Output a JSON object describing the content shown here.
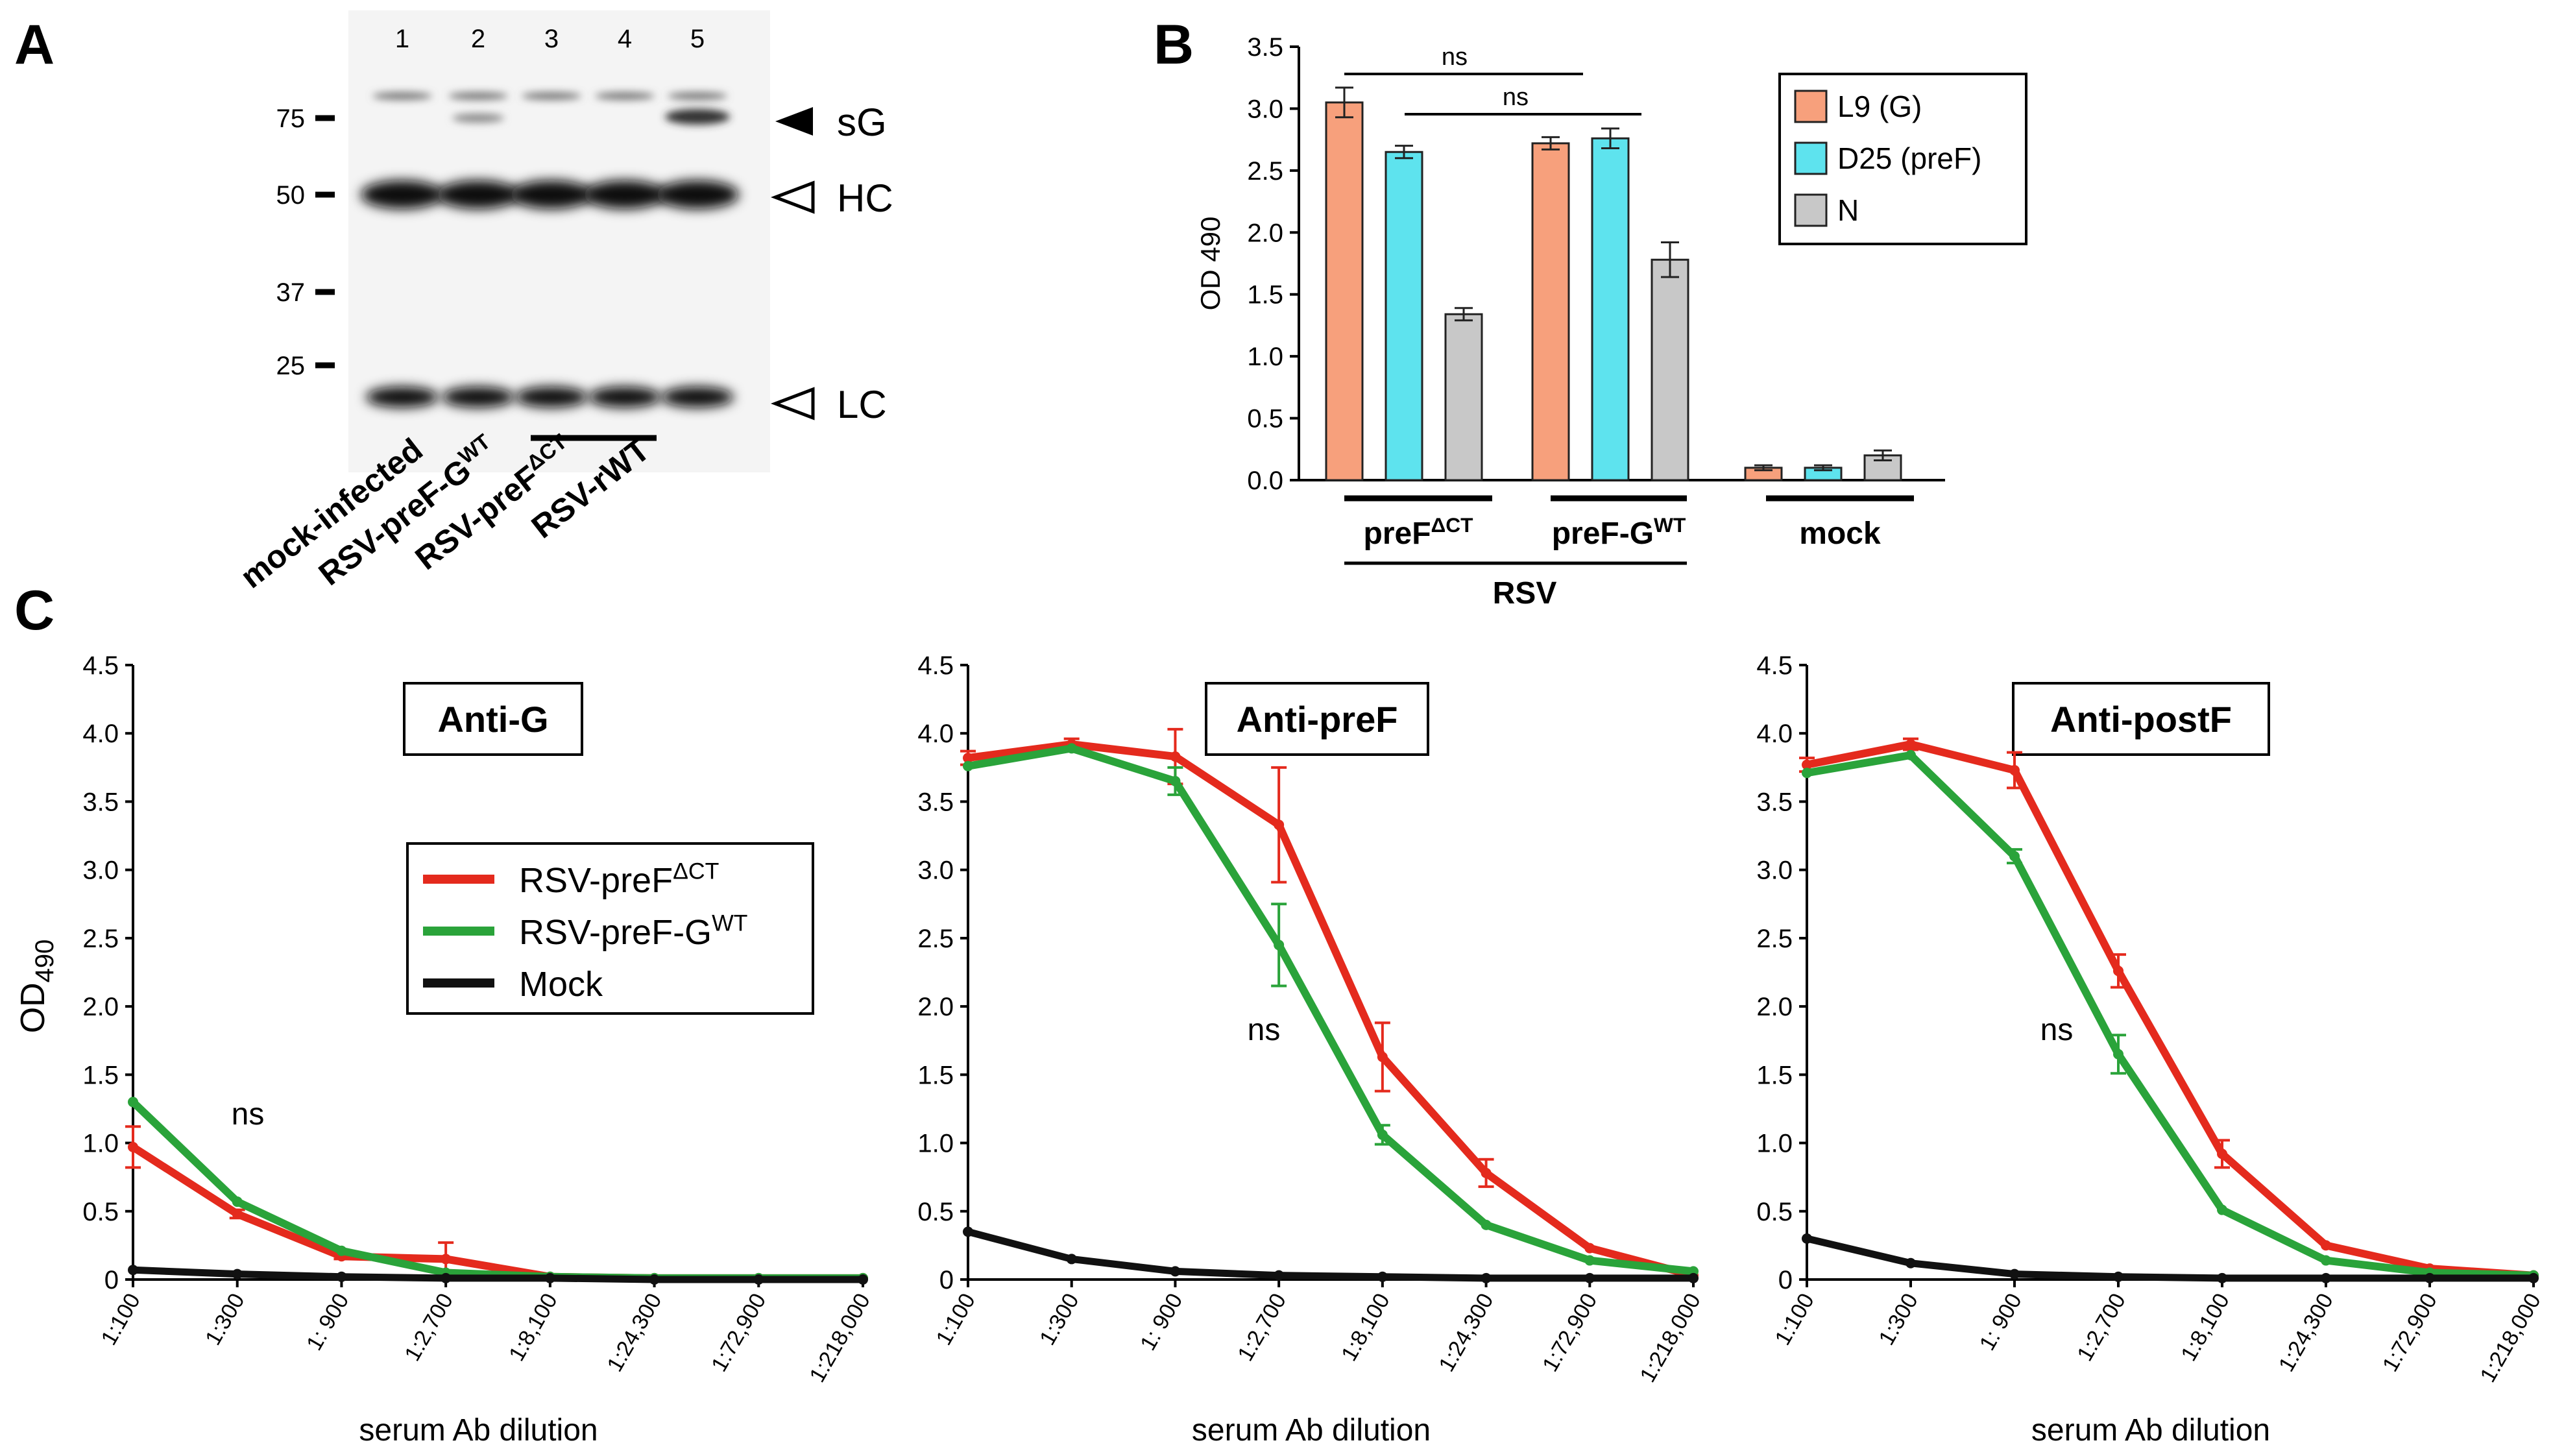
{
  "panels": {
    "a": "A",
    "b": "B",
    "c": "C"
  },
  "colors": {
    "red": "#e42a1d",
    "green": "#2aa33a",
    "black": "#111111",
    "salmon": "#f7a07c",
    "cyan": "#5ee3ee",
    "gray": "#c8c8c8"
  },
  "blot": {
    "lanes": [
      "1",
      "2",
      "3",
      "4",
      "5"
    ],
    "markers": [
      "75",
      "50",
      "37",
      "25"
    ],
    "band_labels": [
      "sG",
      "HC",
      "LC"
    ],
    "sample_labels": [
      "mock-infected",
      "RSV-preF-G",
      "RSV-preF",
      "RSV-rWT"
    ],
    "sample_sups": [
      "",
      "WT",
      "ΔCT",
      ""
    ]
  },
  "chart_data": [
    {
      "type": "bar",
      "panel": "B",
      "ylabel": "OD 490",
      "ylim": [
        0,
        3.5
      ],
      "yticks": [
        "0.0",
        "0.5",
        "1.0",
        "1.5",
        "2.0",
        "2.5",
        "3.0",
        "3.5"
      ],
      "groups": [
        "preFΔCT",
        "preF-GWT",
        "mock"
      ],
      "group_labels": [
        {
          "main": "preF",
          "sup": "ΔCT"
        },
        {
          "main": "preF-G",
          "sup": "WT"
        },
        {
          "main": "mock",
          "sup": ""
        }
      ],
      "supergroup_label": "RSV",
      "series": [
        {
          "name": "L9 (G)",
          "values": [
            3.05,
            2.72,
            0.1
          ],
          "errors": [
            0.12,
            0.05,
            0.02
          ]
        },
        {
          "name": "D25 (preF)",
          "values": [
            2.65,
            2.76,
            0.1
          ],
          "errors": [
            0.05,
            0.08,
            0.02
          ]
        },
        {
          "name": "N",
          "values": [
            1.34,
            1.78,
            0.2
          ],
          "errors": [
            0.05,
            0.14,
            0.04
          ]
        }
      ],
      "annotations": [
        "ns",
        "ns"
      ]
    },
    {
      "type": "line",
      "panel": "C",
      "title": "Anti-G",
      "ylabel": "OD",
      "ylabel_sub": "490",
      "xlabel": "serum Ab dilution",
      "ylim": [
        0,
        4.5
      ],
      "yticks": [
        "0",
        "0.5",
        "1.0",
        "1.5",
        "2.0",
        "2.5",
        "3.0",
        "3.5",
        "4.0",
        "4.5"
      ],
      "categories": [
        "1:100",
        "1:300",
        "1: 900",
        "1:2,700",
        "1:8,100",
        "1:24,300",
        "1:72,900",
        "1:218,000"
      ],
      "annotation": "ns",
      "legend": [
        {
          "main": "RSV-preF",
          "sup": "ΔCT"
        },
        {
          "main": "RSV-preF-G",
          "sup": "WT"
        },
        {
          "main": "Mock",
          "sup": ""
        }
      ],
      "series": [
        {
          "name": "RSV-preFΔCT",
          "values": [
            0.97,
            0.48,
            0.17,
            0.15,
            0.02,
            0.01,
            0.01,
            0.01
          ],
          "errors": [
            0.15,
            0.03,
            0.02,
            0.12,
            0.0,
            0.0,
            0.0,
            0.0
          ]
        },
        {
          "name": "RSV-preF-GWT",
          "values": [
            1.3,
            0.57,
            0.21,
            0.05,
            0.02,
            0.01,
            0.01,
            0.01
          ],
          "errors": [
            0.0,
            0.0,
            0.0,
            0.0,
            0.0,
            0.0,
            0.0,
            0.0
          ]
        },
        {
          "name": "Mock",
          "values": [
            0.07,
            0.04,
            0.02,
            0.01,
            0.01,
            0.0,
            0.0,
            0.0
          ],
          "errors": [
            0.0,
            0.0,
            0.0,
            0.0,
            0.0,
            0.0,
            0.0,
            0.0
          ]
        }
      ]
    },
    {
      "type": "line",
      "panel": "C",
      "title": "Anti-preF",
      "ylabel": "",
      "xlabel": "serum Ab dilution",
      "ylim": [
        0,
        4.5
      ],
      "yticks": [
        "0",
        "0.5",
        "1.0",
        "1.5",
        "2.0",
        "2.5",
        "3.0",
        "3.5",
        "4.0",
        "4.5"
      ],
      "categories": [
        "1:100",
        "1:300",
        "1: 900",
        "1:2,700",
        "1:8,100",
        "1:24,300",
        "1:72,900",
        "1:218,000"
      ],
      "annotation": "ns",
      "series": [
        {
          "name": "RSV-preFΔCT",
          "values": [
            3.82,
            3.92,
            3.83,
            3.33,
            1.63,
            0.78,
            0.23,
            0.03
          ],
          "errors": [
            0.05,
            0.04,
            0.2,
            0.42,
            0.25,
            0.1,
            0.0,
            0.0
          ]
        },
        {
          "name": "RSV-preF-GWT",
          "values": [
            3.76,
            3.89,
            3.65,
            2.45,
            1.06,
            0.4,
            0.14,
            0.06
          ],
          "errors": [
            0.0,
            0.0,
            0.1,
            0.3,
            0.07,
            0.0,
            0.0,
            0.0
          ]
        },
        {
          "name": "Mock",
          "values": [
            0.35,
            0.15,
            0.06,
            0.03,
            0.02,
            0.01,
            0.01,
            0.01
          ],
          "errors": [
            0.0,
            0.0,
            0.0,
            0.0,
            0.0,
            0.0,
            0.0,
            0.0
          ]
        }
      ]
    },
    {
      "type": "line",
      "panel": "C",
      "title": "Anti-postF",
      "ylabel": "",
      "xlabel": "serum Ab dilution",
      "ylim": [
        0,
        4.5
      ],
      "yticks": [
        "0",
        "0.5",
        "1.0",
        "1.5",
        "2.0",
        "2.5",
        "3.0",
        "3.5",
        "4.0",
        "4.5"
      ],
      "categories": [
        "1:100",
        "1:300",
        "1: 900",
        "1:2,700",
        "1:8,100",
        "1:24,300",
        "1:72,900",
        "1:218,000"
      ],
      "annotation": "ns",
      "series": [
        {
          "name": "RSV-preFΔCT",
          "values": [
            3.77,
            3.92,
            3.73,
            2.26,
            0.92,
            0.25,
            0.08,
            0.03
          ],
          "errors": [
            0.05,
            0.04,
            0.13,
            0.12,
            0.1,
            0.0,
            0.0,
            0.0
          ]
        },
        {
          "name": "RSV-preF-GWT",
          "values": [
            3.71,
            3.84,
            3.1,
            1.65,
            0.51,
            0.14,
            0.05,
            0.03
          ],
          "errors": [
            0.0,
            0.0,
            0.05,
            0.14,
            0.0,
            0.0,
            0.0,
            0.0
          ]
        },
        {
          "name": "Mock",
          "values": [
            0.3,
            0.12,
            0.04,
            0.02,
            0.01,
            0.01,
            0.01,
            0.01
          ],
          "errors": [
            0.0,
            0.0,
            0.0,
            0.0,
            0.0,
            0.0,
            0.0,
            0.0
          ]
        }
      ]
    }
  ]
}
